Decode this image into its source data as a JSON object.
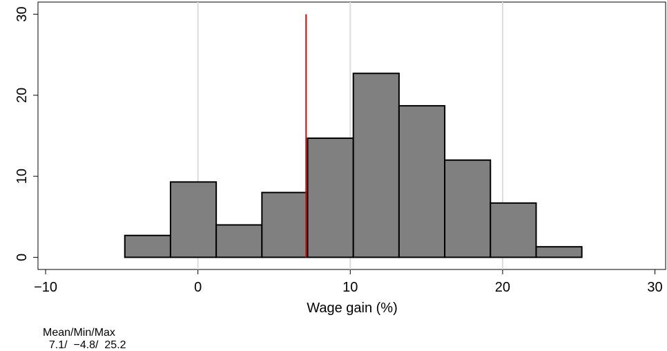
{
  "chart_data": {
    "type": "histogram",
    "x_label": "Wage gain (%)",
    "bins": [
      -4.8,
      -1.8,
      1.2,
      4.2,
      7.2,
      10.2,
      13.2,
      16.2,
      19.2,
      22.2,
      25.2
    ],
    "values": [
      2.7,
      9.3,
      4.0,
      8.0,
      14.7,
      22.7,
      18.7,
      12.0,
      6.7,
      1.3
    ],
    "color": "#808080",
    "xlim": [
      -10.5,
      30.7
    ],
    "ylim": [
      -1.5,
      31.5
    ],
    "xticks": [
      {
        "value": -10,
        "label": "−10"
      },
      0,
      10,
      20,
      30
    ],
    "yticks": [
      0,
      10,
      20,
      30
    ],
    "grid": true,
    "mean_line": {
      "value": 7.1,
      "color": "#e00000"
    },
    "note": [
      "Mean/Min/Max",
      "  7.1/  −4.8/  25.2"
    ]
  }
}
